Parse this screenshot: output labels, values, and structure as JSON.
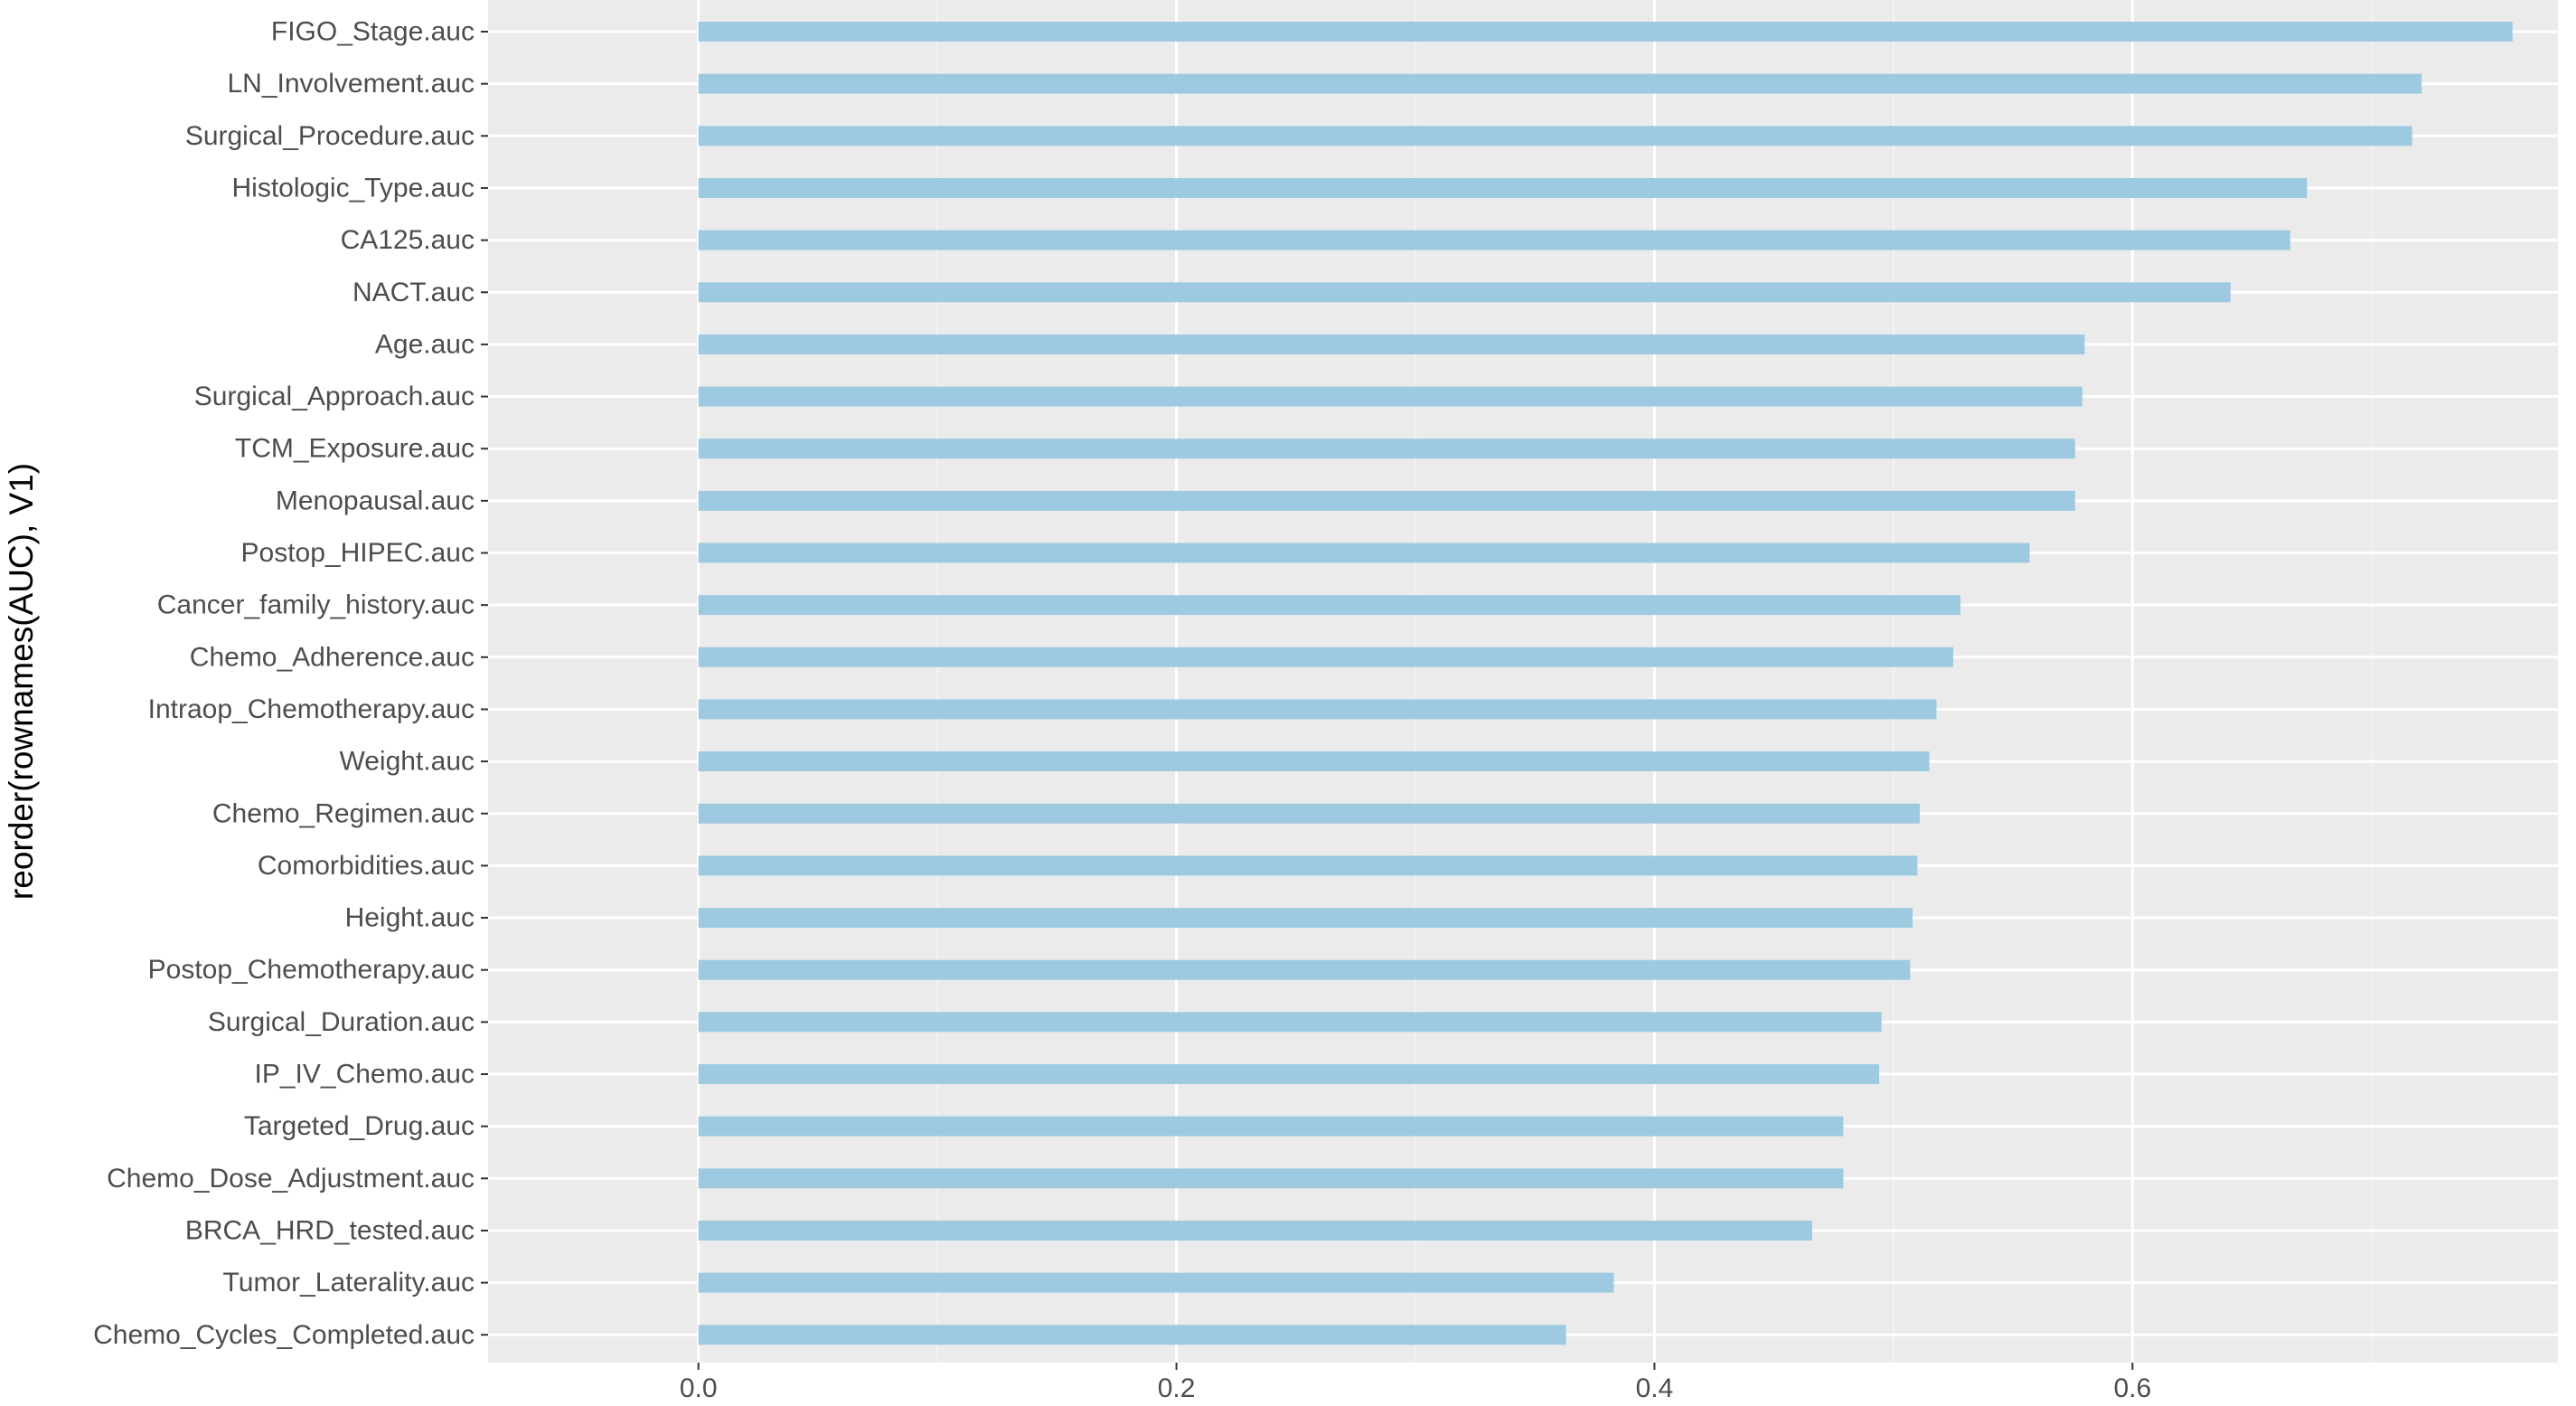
{
  "chart_data": {
    "type": "bar",
    "orientation": "horizontal",
    "title": "",
    "xlabel": "",
    "ylabel": "reorder(rownames(AUC), V1)",
    "xlim": [
      -0.088,
      0.778
    ],
    "x_ticks": [
      0.0,
      0.2,
      0.4,
      0.6
    ],
    "x_tick_labels": [
      "0.0",
      "0.2",
      "0.4",
      "0.6"
    ],
    "grid": true,
    "legend": "none",
    "categories": [
      "FIGO_Stage.auc",
      "LN_Involvement.auc",
      "Surgical_Procedure.auc",
      "Histologic_Type.auc",
      "CA125.auc",
      "NACT.auc",
      "Age.auc",
      "Surgical_Approach.auc",
      "TCM_Exposure.auc",
      "Menopausal.auc",
      "Postop_HIPEC.auc",
      "Cancer_family_history.auc",
      "Chemo_Adherence.auc",
      "Intraop_Chemotherapy.auc",
      "Weight.auc",
      "Chemo_Regimen.auc",
      "Comorbidities.auc",
      "Height.auc",
      "Postop_Chemotherapy.auc",
      "Surgical_Duration.auc",
      "IP_IV_Chemo.auc",
      "Targeted_Drug.auc",
      "Chemo_Dose_Adjustment.auc",
      "BRCA_HRD_tested.auc",
      "Tumor_Laterality.auc",
      "Chemo_Cycles_Completed.auc"
    ],
    "values": [
      0.759,
      0.721,
      0.717,
      0.673,
      0.666,
      0.641,
      0.58,
      0.579,
      0.576,
      0.576,
      0.557,
      0.528,
      0.525,
      0.518,
      0.515,
      0.511,
      0.51,
      0.508,
      0.507,
      0.495,
      0.494,
      0.479,
      0.479,
      0.466,
      0.383,
      0.363
    ],
    "colors": {
      "bar": "#9ecae1",
      "panel_background": "#ebebeb",
      "grid_major": "#ffffff",
      "grid_minor": "#f5f5f5",
      "tick_text": "#4d4d4d",
      "tick_mark": "#333333"
    }
  }
}
